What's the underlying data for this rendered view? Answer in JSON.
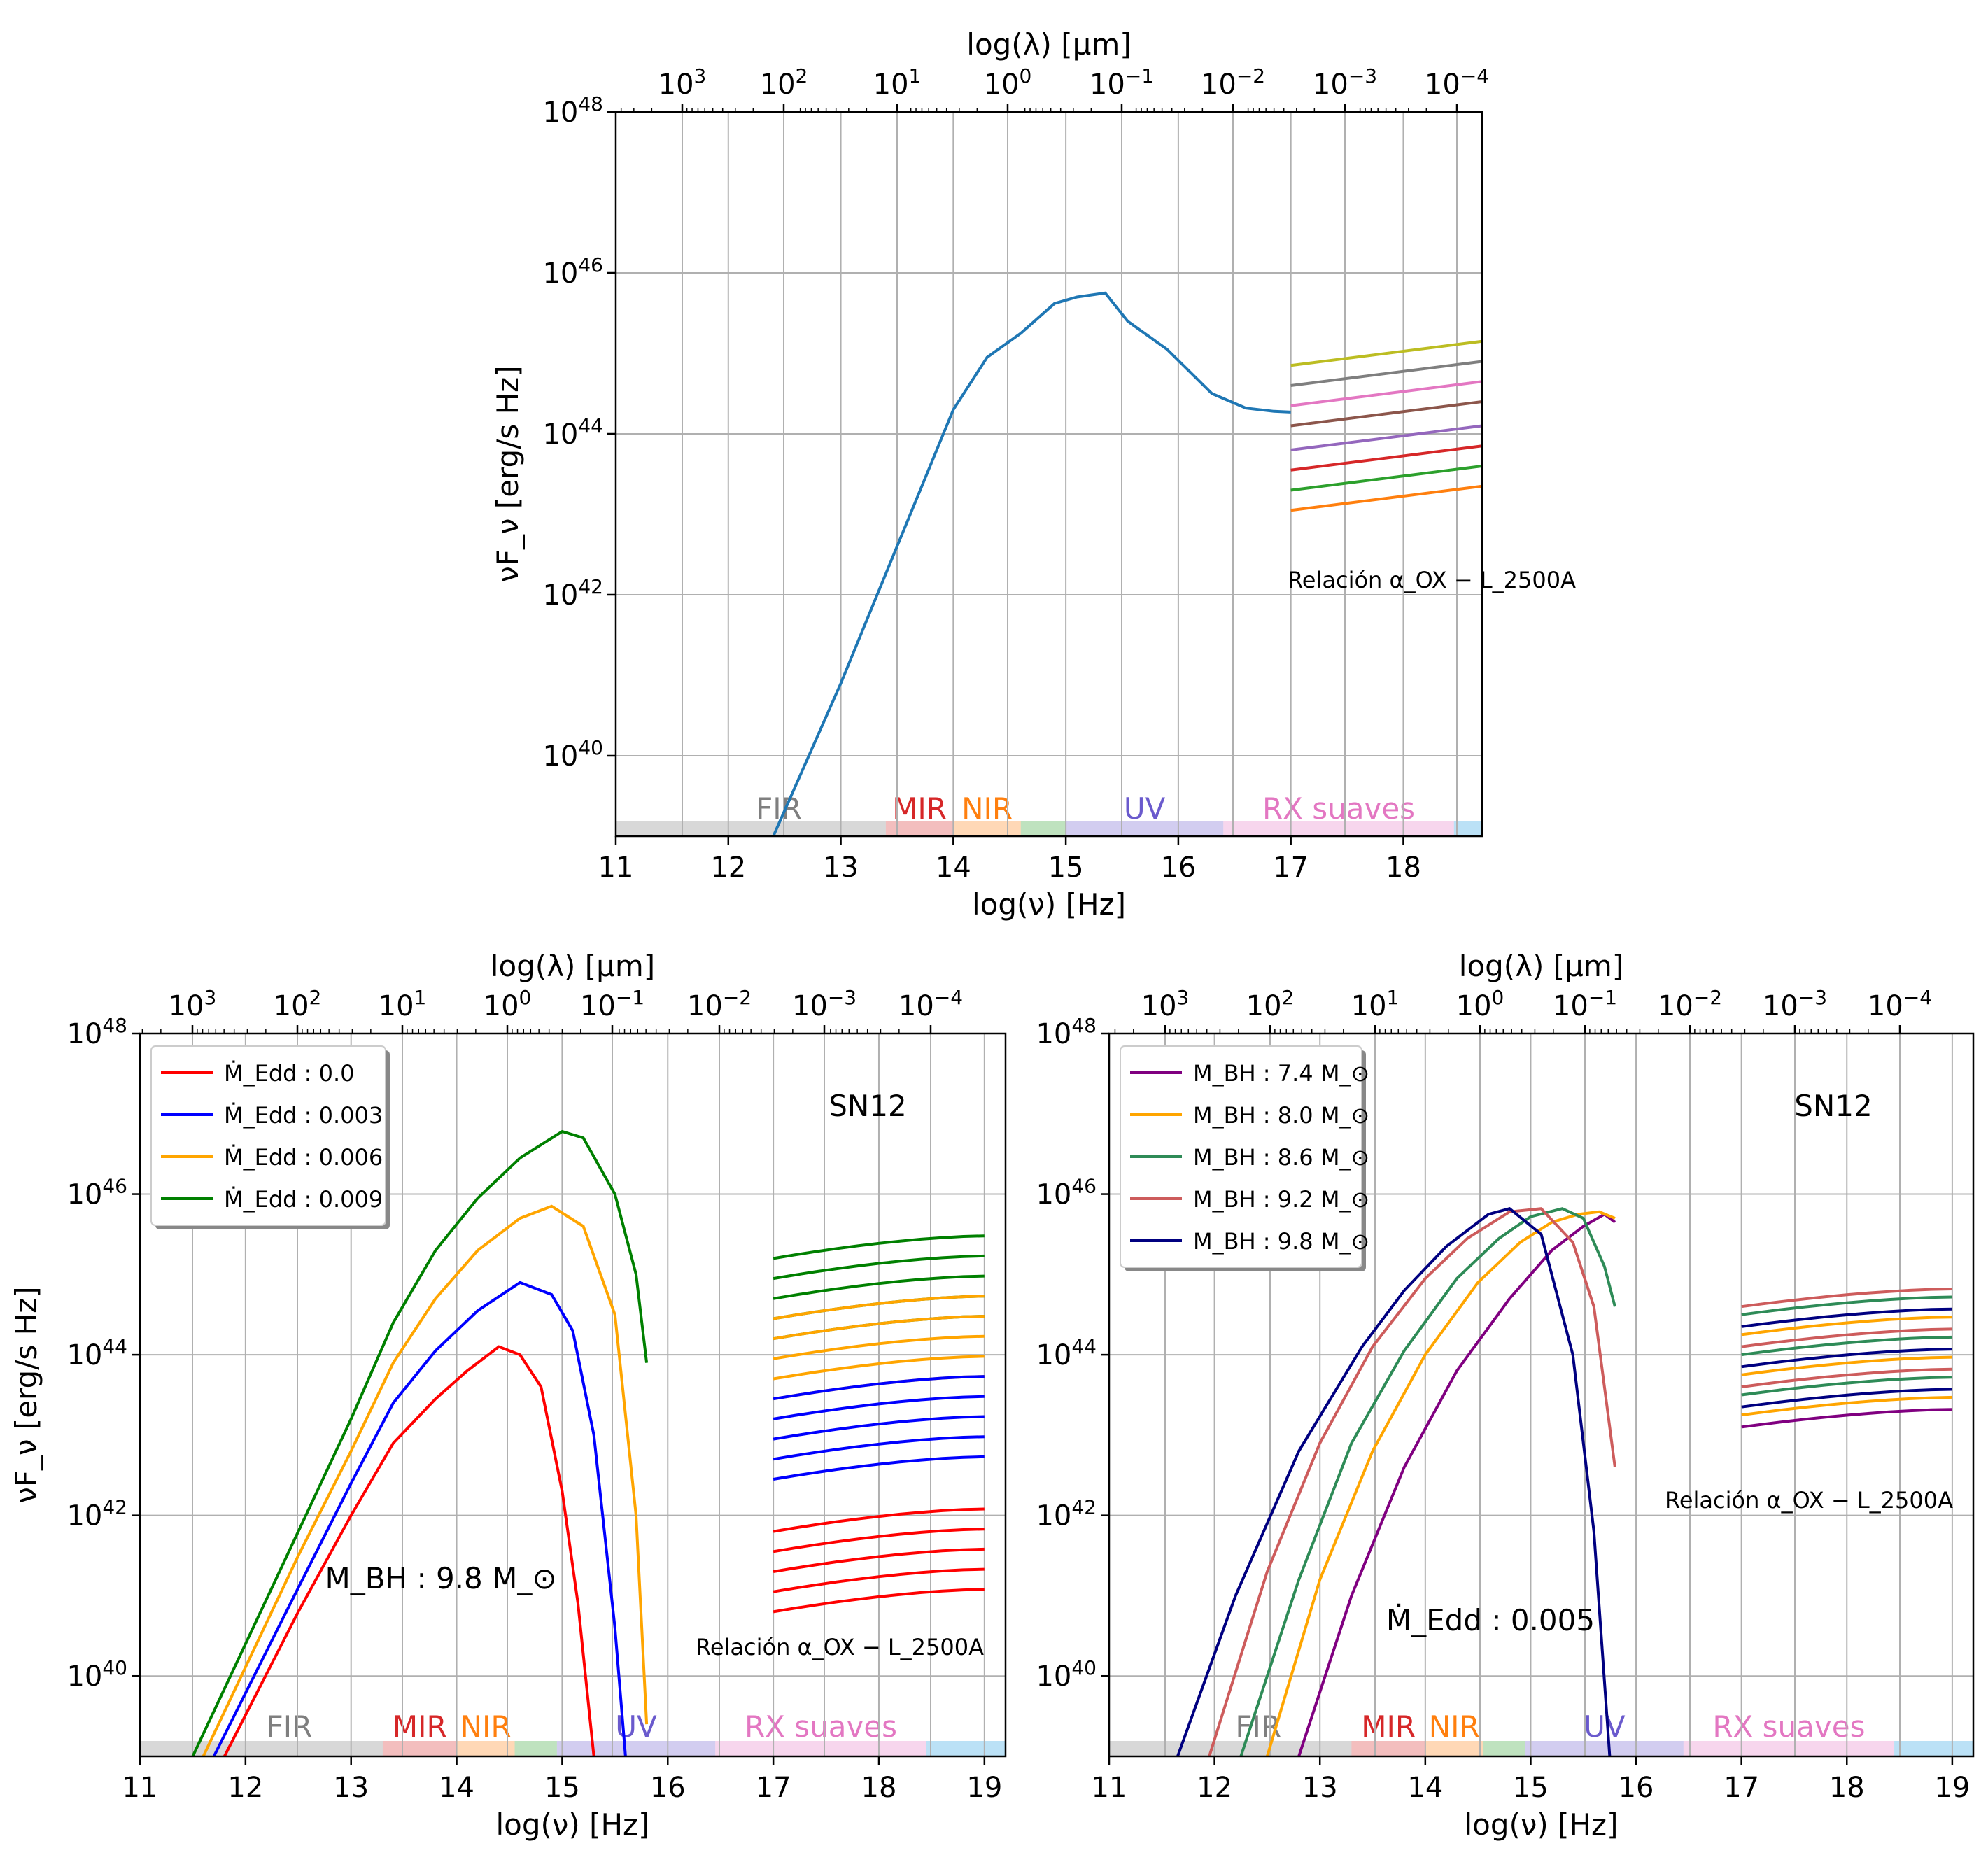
{
  "chart_data": [
    {
      "type": "line",
      "xlabel": "log(ν) [Hz]",
      "x2label": "log(λ) [μm]",
      "ylabel": "νF_ν [erg/s Hz]",
      "xlim": [
        11,
        18.7
      ],
      "ylim_log10": [
        39,
        48
      ],
      "yscale": "log",
      "grid": true,
      "x_ticks": [
        11,
        12,
        13,
        14,
        15,
        16,
        17,
        18
      ],
      "y_ticks": [
        "10^40",
        "10^42",
        "10^44",
        "10^46",
        "10^48"
      ],
      "top_ticks": [
        "10^3",
        "10^2",
        "10^1",
        "10^0",
        "10^-1",
        "10^-2",
        "10^-3",
        "10^-4"
      ],
      "annotations": [
        {
          "text": "Relación α_OX − L_2500A"
        }
      ],
      "bands": [
        {
          "label": "FIR",
          "x0": 11,
          "x1": 13.4,
          "color": "#7f7f7f"
        },
        {
          "label": "MIR",
          "x0": 13.4,
          "x1": 14.0,
          "color": "#d62728"
        },
        {
          "label": "NIR",
          "x0": 14.0,
          "x1": 14.6,
          "color": "#ff7f0e"
        },
        {
          "label": "",
          "x0": 14.6,
          "x1": 15.0,
          "color": "#2ca02c"
        },
        {
          "label": "UV",
          "x0": 15.0,
          "x1": 16.4,
          "color": "#6a5acd"
        },
        {
          "label": "RX suaves",
          "x0": 16.4,
          "x1": 18.45,
          "color": "#e377c2"
        },
        {
          "label": "",
          "x0": 18.45,
          "x1": 18.7,
          "color": "#1f9be0"
        }
      ],
      "series": [
        {
          "color": "#1f77b4",
          "x": [
            12.4,
            13.0,
            13.5,
            14.0,
            14.3,
            14.6,
            14.9,
            15.1,
            15.35,
            15.55,
            15.9,
            16.3,
            16.6,
            16.85,
            17.0
          ],
          "y_log10": [
            39.0,
            40.9,
            42.6,
            44.3,
            44.95,
            45.25,
            45.62,
            45.7,
            45.75,
            45.4,
            45.05,
            44.5,
            44.32,
            44.28,
            44.27
          ]
        }
      ],
      "xray_lines": [
        {
          "color": "#bcbd22",
          "x": [
            17,
            18.7
          ],
          "y_log10": [
            44.85,
            45.15
          ]
        },
        {
          "color": "#7f7f7f",
          "x": [
            17,
            18.7
          ],
          "y_log10": [
            44.6,
            44.9
          ]
        },
        {
          "color": "#e377c2",
          "x": [
            17,
            18.7
          ],
          "y_log10": [
            44.35,
            44.65
          ]
        },
        {
          "color": "#8c564b",
          "x": [
            17,
            18.7
          ],
          "y_log10": [
            44.1,
            44.4
          ]
        },
        {
          "color": "#9467bd",
          "x": [
            17,
            18.7
          ],
          "y_log10": [
            43.8,
            44.1
          ]
        },
        {
          "color": "#d62728",
          "x": [
            17,
            18.7
          ],
          "y_log10": [
            43.55,
            43.85
          ]
        },
        {
          "color": "#2ca02c",
          "x": [
            17,
            18.7
          ],
          "y_log10": [
            43.3,
            43.6
          ]
        },
        {
          "color": "#ff7f0e",
          "x": [
            17,
            18.7
          ],
          "y_log10": [
            43.05,
            43.35
          ]
        }
      ]
    },
    {
      "type": "line",
      "xlabel": "log(ν) [Hz]",
      "x2label": "log(λ) [μm]",
      "ylabel": "νF_ν [erg/s Hz]",
      "xlim": [
        11,
        19.2
      ],
      "ylim_log10": [
        39,
        48
      ],
      "yscale": "log",
      "grid": true,
      "x_ticks": [
        11,
        12,
        13,
        14,
        15,
        16,
        17,
        18,
        19
      ],
      "y_ticks": [
        "10^40",
        "10^42",
        "10^44",
        "10^46",
        "10^48"
      ],
      "top_ticks": [
        "10^3",
        "10^2",
        "10^1",
        "10^0",
        "10^-1",
        "10^-2",
        "10^-3",
        "10^-4"
      ],
      "legend_position": "top-left",
      "annotations": [
        {
          "text": "SN12"
        },
        {
          "text": "M_BH : 9.8 M_⊙"
        },
        {
          "text": "Relación α_OX − L_2500A"
        }
      ],
      "bands": [
        {
          "label": "FIR",
          "x0": 11,
          "x1": 13.3,
          "color": "#7f7f7f"
        },
        {
          "label": "MIR",
          "x0": 13.3,
          "x1": 14.0,
          "color": "#d62728"
        },
        {
          "label": "NIR",
          "x0": 14.0,
          "x1": 14.55,
          "color": "#ff7f0e"
        },
        {
          "label": "",
          "x0": 14.55,
          "x1": 14.95,
          "color": "#2ca02c"
        },
        {
          "label": "UV",
          "x0": 14.95,
          "x1": 16.45,
          "color": "#6a5acd"
        },
        {
          "label": "RX suaves",
          "x0": 16.45,
          "x1": 18.45,
          "color": "#e377c2"
        },
        {
          "label": "",
          "x0": 18.45,
          "x1": 19.2,
          "color": "#1f9be0"
        }
      ],
      "series": [
        {
          "name": "Ṁ_Edd : 0.0",
          "color": "#ff0000",
          "x": [
            11.8,
            12.5,
            13.0,
            13.4,
            13.8,
            14.1,
            14.4,
            14.6,
            14.8,
            15.0,
            15.15,
            15.3
          ],
          "y_log10": [
            39.0,
            40.8,
            42.0,
            42.9,
            43.45,
            43.8,
            44.1,
            44.0,
            43.6,
            42.3,
            40.9,
            39.0
          ]
        },
        {
          "name": "Ṁ_Edd : 0.003",
          "color": "#0000ff",
          "x": [
            11.7,
            12.5,
            13.0,
            13.4,
            13.8,
            14.2,
            14.6,
            14.9,
            15.1,
            15.3,
            15.5,
            15.6
          ],
          "y_log10": [
            39.0,
            41.1,
            42.4,
            43.4,
            44.05,
            44.55,
            44.9,
            44.75,
            44.3,
            43.0,
            40.6,
            39.0
          ]
        },
        {
          "name": "Ṁ_Edd : 0.006",
          "color": "#ffa500",
          "x": [
            11.6,
            12.5,
            13.0,
            13.4,
            13.8,
            14.2,
            14.6,
            14.9,
            15.2,
            15.5,
            15.7,
            15.8
          ],
          "y_log10": [
            39.0,
            41.5,
            42.8,
            43.9,
            44.7,
            45.3,
            45.7,
            45.85,
            45.6,
            44.5,
            42.0,
            39.4
          ]
        },
        {
          "name": "Ṁ_Edd : 0.009",
          "color": "#008000",
          "x": [
            11.5,
            12.5,
            13.0,
            13.4,
            13.8,
            14.2,
            14.6,
            15.0,
            15.2,
            15.5,
            15.7,
            15.8
          ],
          "y_log10": [
            39.0,
            41.8,
            43.2,
            44.4,
            45.3,
            45.95,
            46.45,
            46.78,
            46.7,
            46.0,
            45.0,
            43.9
          ]
        }
      ],
      "xray_groups": [
        {
          "color": "#008000",
          "start_log10": [
            45.2,
            44.95,
            44.7,
            44.45,
            44.2
          ],
          "slope": 0.28
        },
        {
          "color": "#ffa500",
          "start_log10": [
            44.45,
            44.2,
            43.95,
            43.7,
            43.45
          ],
          "slope": 0.28
        },
        {
          "color": "#0000ff",
          "start_log10": [
            43.45,
            43.2,
            42.95,
            42.7,
            42.45
          ],
          "slope": 0.28
        },
        {
          "color": "#ff0000",
          "start_log10": [
            41.8,
            41.55,
            41.3,
            41.05,
            40.8
          ],
          "slope": 0.28
        }
      ]
    },
    {
      "type": "line",
      "xlabel": "log(ν) [Hz]",
      "x2label": "log(λ) [μm]",
      "ylabel": "",
      "xlim": [
        11,
        19.2
      ],
      "ylim_log10": [
        39,
        48
      ],
      "yscale": "log",
      "grid": true,
      "x_ticks": [
        11,
        12,
        13,
        14,
        15,
        16,
        17,
        18,
        19
      ],
      "y_ticks": [
        "10^40",
        "10^42",
        "10^44",
        "10^46",
        "10^48"
      ],
      "top_ticks": [
        "10^3",
        "10^2",
        "10^1",
        "10^0",
        "10^-1",
        "10^-2",
        "10^-3",
        "10^-4"
      ],
      "legend_position": "top-left",
      "annotations": [
        {
          "text": "SN12"
        },
        {
          "text": "Ṁ_Edd : 0.005"
        },
        {
          "text": "Relación α_OX − L_2500A"
        }
      ],
      "bands": [
        {
          "label": "FIR",
          "x0": 11,
          "x1": 13.3,
          "color": "#7f7f7f"
        },
        {
          "label": "MIR",
          "x0": 13.3,
          "x1": 14.0,
          "color": "#d62728"
        },
        {
          "label": "NIR",
          "x0": 14.0,
          "x1": 14.55,
          "color": "#ff7f0e"
        },
        {
          "label": "",
          "x0": 14.55,
          "x1": 14.95,
          "color": "#2ca02c"
        },
        {
          "label": "UV",
          "x0": 14.95,
          "x1": 16.45,
          "color": "#6a5acd"
        },
        {
          "label": "RX suaves",
          "x0": 16.45,
          "x1": 18.45,
          "color": "#e377c2"
        },
        {
          "label": "",
          "x0": 18.45,
          "x1": 19.2,
          "color": "#1f9be0"
        }
      ],
      "series": [
        {
          "name": "M_BH : 7.4 M_⊙",
          "color": "#800080",
          "x": [
            12.8,
            13.3,
            13.8,
            14.3,
            14.8,
            15.2,
            15.5,
            15.7,
            15.8
          ],
          "y_log10": [
            39.0,
            41.0,
            42.6,
            43.8,
            44.7,
            45.3,
            45.6,
            45.75,
            45.65
          ]
        },
        {
          "name": "M_BH : 8.0 M_⊙",
          "color": "#ffa500",
          "x": [
            12.5,
            13.0,
            13.5,
            14.0,
            14.5,
            14.9,
            15.2,
            15.45,
            15.65,
            15.8
          ],
          "y_log10": [
            39.0,
            41.2,
            42.8,
            44.0,
            44.9,
            45.4,
            45.65,
            45.75,
            45.78,
            45.7
          ]
        },
        {
          "name": "M_BH : 8.6 M_⊙",
          "color": "#2e8b57",
          "x": [
            12.25,
            12.8,
            13.3,
            13.8,
            14.3,
            14.7,
            15.0,
            15.3,
            15.5,
            15.7,
            15.8
          ],
          "y_log10": [
            39.0,
            41.2,
            42.9,
            44.05,
            44.95,
            45.45,
            45.72,
            45.82,
            45.7,
            45.1,
            44.6
          ]
        },
        {
          "name": "M_BH : 9.2 M_⊙",
          "color": "#cd5c5c",
          "x": [
            11.95,
            12.5,
            13.0,
            13.5,
            14.0,
            14.4,
            14.8,
            15.1,
            15.4,
            15.6,
            15.8
          ],
          "y_log10": [
            39.0,
            41.3,
            42.9,
            44.1,
            44.95,
            45.45,
            45.78,
            45.82,
            45.4,
            44.6,
            42.6
          ]
        },
        {
          "name": "M_BH : 9.8 M_⊙",
          "color": "#000080",
          "x": [
            11.65,
            12.2,
            12.8,
            13.4,
            13.8,
            14.2,
            14.6,
            14.8,
            15.1,
            15.4,
            15.6,
            15.75
          ],
          "y_log10": [
            39.0,
            41.0,
            42.8,
            44.1,
            44.8,
            45.35,
            45.75,
            45.82,
            45.5,
            44.0,
            41.8,
            39.0
          ]
        }
      ],
      "xray_groups": [
        {
          "color": "#cd5c5c",
          "start_log10": [
            44.6,
            44.1,
            43.6
          ],
          "slope": 0.22
        },
        {
          "color": "#2e8b57",
          "start_log10": [
            44.5,
            44.0,
            43.5
          ],
          "slope": 0.22
        },
        {
          "color": "#000080",
          "start_log10": [
            44.35,
            43.85,
            43.35
          ],
          "slope": 0.22
        },
        {
          "color": "#ffa500",
          "start_log10": [
            44.25,
            43.75,
            43.25
          ],
          "slope": 0.22
        },
        {
          "color": "#800080",
          "start_log10": [
            43.1
          ],
          "slope": 0.22
        }
      ]
    }
  ]
}
